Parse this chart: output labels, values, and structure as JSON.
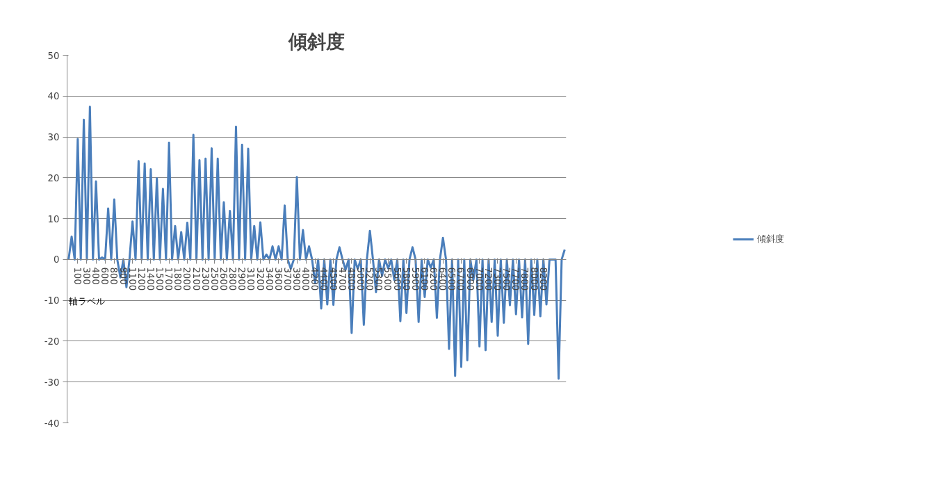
{
  "chart_data": {
    "type": "line",
    "title": "傾斜度",
    "xlabel": "軸ラベル",
    "categories": [
      null,
      null,
      null,
      "100",
      null,
      null,
      "300",
      null,
      null,
      "400",
      null,
      null,
      "600",
      null,
      null,
      "800",
      null,
      null,
      "900",
      null,
      null,
      "1100",
      null,
      null,
      "1200",
      null,
      null,
      "1400",
      null,
      null,
      "1500",
      null,
      null,
      "1700",
      null,
      null,
      "1800",
      null,
      null,
      "2000",
      null,
      null,
      "2100",
      null,
      null,
      "2300",
      null,
      null,
      "2500",
      null,
      null,
      "2600",
      null,
      null,
      "2800",
      null,
      null,
      "2900",
      null,
      null,
      "3100",
      null,
      null,
      "3200",
      null,
      null,
      "3400",
      null,
      null,
      "3600",
      null,
      null,
      "3700",
      null,
      null,
      "3900",
      null,
      null,
      "4000",
      null,
      null,
      "4200",
      null,
      null,
      "4400",
      null,
      null,
      "4500",
      null,
      null,
      "4700",
      null,
      null,
      "4800",
      null,
      null,
      "5000",
      null,
      null,
      "5200",
      null,
      null,
      "5300",
      null,
      null,
      "5500",
      null,
      null,
      "5600",
      null,
      null,
      "5800",
      null,
      null,
      "5900",
      null,
      null,
      "6100",
      null,
      null,
      "6200",
      null,
      null,
      "6400",
      null,
      null,
      "6500",
      null,
      null,
      "6700",
      null,
      null,
      "6900",
      null,
      null,
      "7000",
      null,
      null,
      "7200",
      null,
      null,
      "7300",
      null,
      null,
      "7500",
      null,
      null,
      "7700",
      null,
      null,
      "7800",
      null,
      null,
      "8000",
      null,
      null,
      "8200",
      null,
      null,
      null,
      null,
      null,
      null,
      null
    ],
    "series": [
      {
        "name": "傾斜度",
        "color": "#4a7ebb",
        "values": [
          0,
          5.6,
          0,
          29.5,
          0,
          34.2,
          0,
          37.4,
          0,
          19.1,
          0,
          0.5,
          0,
          12.5,
          0,
          14.7,
          0,
          -4.4,
          0,
          -6.8,
          0,
          9.3,
          0,
          24.1,
          0,
          23.5,
          0,
          22.1,
          0,
          19.9,
          0,
          17.3,
          0,
          28.6,
          0,
          8.2,
          0,
          6.7,
          0,
          9.0,
          0,
          30.5,
          0,
          24.3,
          0,
          24.7,
          0,
          27.2,
          0,
          24.7,
          0,
          14.0,
          0,
          11.9,
          0,
          32.5,
          0,
          28.1,
          0,
          27.1,
          0,
          8.2,
          0,
          9.1,
          0,
          1.2,
          0,
          3.2,
          0,
          3.2,
          0,
          13.2,
          0,
          -2.3,
          0,
          20.2,
          0,
          7.2,
          0,
          3.2,
          0,
          -5.8,
          0,
          -12.0,
          0,
          -11.0,
          0,
          -11.1,
          0,
          3.0,
          0,
          -2.5,
          0,
          -18.0,
          0,
          -2.3,
          0,
          -16.0,
          0,
          7.0,
          0,
          -8.0,
          0,
          -4.0,
          0,
          -2.2,
          0,
          -5.0,
          0,
          -15.1,
          0,
          -13.1,
          0,
          3.0,
          0,
          -15.3,
          0,
          -9.2,
          0,
          -2.0,
          0,
          -14.3,
          0,
          5.3,
          0,
          -21.9,
          0,
          -28.5,
          0,
          -26.3,
          0,
          -24.7,
          0,
          -5.0,
          0,
          -21.3,
          0,
          -22.2,
          0,
          -15.3,
          0,
          -18.7,
          0,
          -15.5,
          0,
          -11.2,
          0,
          -13.4,
          0,
          -14.2,
          0,
          -20.7,
          0,
          -13.6,
          0,
          -13.9,
          0,
          -11.0,
          0,
          0,
          0,
          -29.2,
          0,
          2.4
        ]
      }
    ],
    "ylim": [
      -40,
      50
    ],
    "yticks": [
      -40,
      -30,
      -20,
      -10,
      0,
      10,
      20,
      30,
      40,
      50
    ],
    "grid": "y",
    "legend": "right",
    "marker": "none",
    "line_style": "solid"
  }
}
